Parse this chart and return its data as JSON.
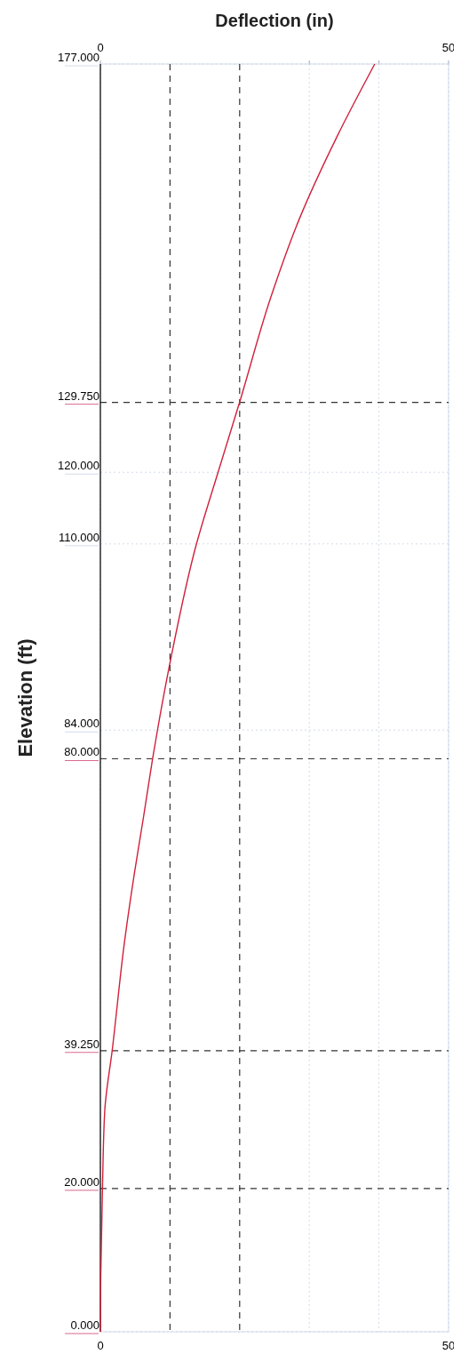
{
  "chart_data": {
    "type": "line",
    "x2label": "Deflection (in)",
    "ylabel": "Elevation (ft)",
    "xlim": [
      0,
      50
    ],
    "xticks": [
      0,
      {
        "value": 30,
        "label": null
      },
      {
        "value": 40,
        "label": null
      },
      50
    ],
    "x2lim": [
      0,
      50
    ],
    "x2ticks": [
      0,
      {
        "value": 30,
        "label": null
      },
      {
        "value": 40,
        "label": null
      },
      50
    ],
    "ylim": [
      0,
      177
    ],
    "yticks": [
      {
        "value": 0,
        "label": "0.000"
      },
      {
        "value": 84,
        "label": "84.000"
      },
      {
        "value": 110,
        "label": "110.000"
      },
      {
        "value": 120,
        "label": "120.000"
      },
      {
        "value": 177,
        "label": "177.000"
      }
    ],
    "grid": true,
    "marker": "none",
    "line_style": "solid",
    "series": [
      {
        "color": "#d0203a",
        "x": [
          0,
          0.05,
          0.3,
          0.64,
          1.7,
          3.5,
          4.9,
          6.2,
          7.5,
          8.2,
          10.1,
          13.8,
          16.9,
          20,
          24.5,
          28.5,
          34,
          39.4
        ],
        "values": [
          0,
          7.5,
          20,
          31,
          39.3,
          54.7,
          64.1,
          71.9,
          80,
          84,
          93.9,
          110,
          120,
          129.8,
          144.5,
          155.2,
          166.9,
          177
        ]
      }
    ],
    "ref_lines": [
      {
        "axis": "y",
        "value": 129.75,
        "label": "129.750",
        "color": "#333333",
        "line_style": "dashed"
      },
      {
        "axis": "y",
        "value": 80,
        "label": "80.000",
        "color": "#333333",
        "line_style": "dashed"
      },
      {
        "axis": "y",
        "value": 39.25,
        "label": "39.250",
        "color": "#333333",
        "line_style": "dashed"
      },
      {
        "axis": "y",
        "value": 20,
        "label": "20.000",
        "color": "#333333",
        "line_style": "dashed"
      },
      {
        "axis": "x",
        "value": 10,
        "color": "#333333",
        "line_style": "dashed"
      },
      {
        "axis": "x",
        "value": 20,
        "color": "#333333",
        "line_style": "dashed"
      }
    ]
  }
}
